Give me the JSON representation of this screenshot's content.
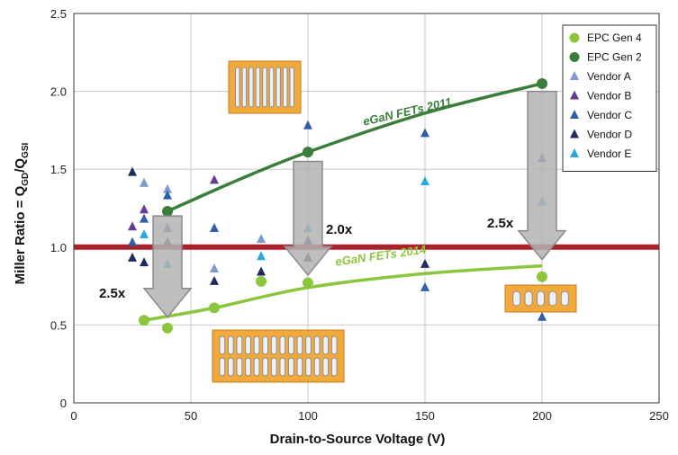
{
  "chart_data": {
    "type": "scatter",
    "xlabel": "Drain-to-Source Voltage (V)",
    "ylabel": {
      "main": "Miller Ratio = Q",
      "sub1": "GD",
      "mid": "/Q",
      "sub2": "GSI"
    },
    "xlim": [
      0,
      250
    ],
    "ylim": [
      0,
      2.5
    ],
    "x_ticks": [
      0,
      50,
      100,
      150,
      200,
      250
    ],
    "y_ticks": [
      0,
      0.5,
      1.0,
      1.5,
      2.0,
      2.5
    ],
    "x_tick_labels": [
      "0",
      "50",
      "100",
      "150",
      "200",
      "250"
    ],
    "y_tick_labels": [
      "0",
      "0.5",
      "1.0",
      "1.5",
      "2.0",
      "2.5"
    ],
    "grid": true,
    "legend_position": "top-right",
    "reference_line": {
      "y": 1.0,
      "color": "#a8232a"
    },
    "series": [
      {
        "name": "EPC Gen 4",
        "marker": "circle",
        "color": "#8cc63f",
        "points": [
          [
            30,
            0.53
          ],
          [
            40,
            0.48
          ],
          [
            60,
            0.61
          ],
          [
            80,
            0.78
          ],
          [
            100,
            0.77
          ],
          [
            200,
            0.81
          ]
        ]
      },
      {
        "name": "EPC Gen 2",
        "marker": "circle",
        "color": "#3b7d3a",
        "points": [
          [
            40,
            1.23
          ],
          [
            100,
            1.61
          ],
          [
            200,
            2.05
          ]
        ]
      },
      {
        "name": "Vendor A",
        "marker": "triangle",
        "color": "#7b9ccd",
        "points": [
          [
            30,
            1.41
          ],
          [
            40,
            1.37
          ],
          [
            60,
            0.86
          ],
          [
            80,
            1.05
          ]
        ]
      },
      {
        "name": "Vendor B",
        "marker": "triangle",
        "color": "#6b3a96",
        "points": [
          [
            25,
            1.13
          ],
          [
            30,
            1.24
          ],
          [
            40,
            1.12
          ],
          [
            60,
            1.43
          ]
        ]
      },
      {
        "name": "Vendor C",
        "marker": "triangle",
        "color": "#2f5fa8",
        "points": [
          [
            25,
            1.03
          ],
          [
            30,
            1.18
          ],
          [
            40,
            1.33
          ],
          [
            60,
            1.12
          ],
          [
            100,
            1.78
          ],
          [
            150,
            1.73
          ],
          [
            150,
            0.74
          ],
          [
            200,
            1.57
          ],
          [
            200,
            0.55
          ]
        ]
      },
      {
        "name": "Vendor D",
        "marker": "triangle",
        "color": "#1f2b5e",
        "points": [
          [
            25,
            1.48
          ],
          [
            25,
            0.93
          ],
          [
            30,
            0.9
          ],
          [
            40,
            1.03
          ],
          [
            60,
            0.78
          ],
          [
            80,
            0.84
          ],
          [
            100,
            1.04
          ],
          [
            100,
            0.93
          ],
          [
            150,
            0.89
          ]
        ]
      },
      {
        "name": "Vendor E",
        "marker": "triangle",
        "color": "#2aa9e0",
        "points": [
          [
            30,
            1.08
          ],
          [
            40,
            0.89
          ],
          [
            80,
            0.94
          ],
          [
            100,
            1.12
          ],
          [
            150,
            1.42
          ],
          [
            200,
            1.29
          ]
        ]
      }
    ],
    "trend_lines": [
      {
        "series": "EPC Gen 2",
        "label": "eGaN FETs 2011",
        "color": "#3b7d3a",
        "points": [
          [
            40,
            1.23
          ],
          [
            70,
            1.43
          ],
          [
            100,
            1.61
          ],
          [
            150,
            1.86
          ],
          [
            200,
            2.05
          ]
        ]
      },
      {
        "series": "EPC Gen 4",
        "label": "eGaN FETs 2014",
        "color": "#8cc63f",
        "points": [
          [
            30,
            0.53
          ],
          [
            60,
            0.61
          ],
          [
            100,
            0.74
          ],
          [
            150,
            0.83
          ],
          [
            200,
            0.88
          ]
        ]
      }
    ],
    "annotations": [
      {
        "text": "2.5x",
        "arrow_x": 40,
        "arrow_from": 1.2,
        "arrow_to": 0.55
      },
      {
        "text": "2.0x",
        "arrow_x": 100,
        "arrow_from": 1.55,
        "arrow_to": 0.82
      },
      {
        "text": "2.5x",
        "arrow_x": 200,
        "arrow_from": 2.0,
        "arrow_to": 0.92
      }
    ]
  }
}
